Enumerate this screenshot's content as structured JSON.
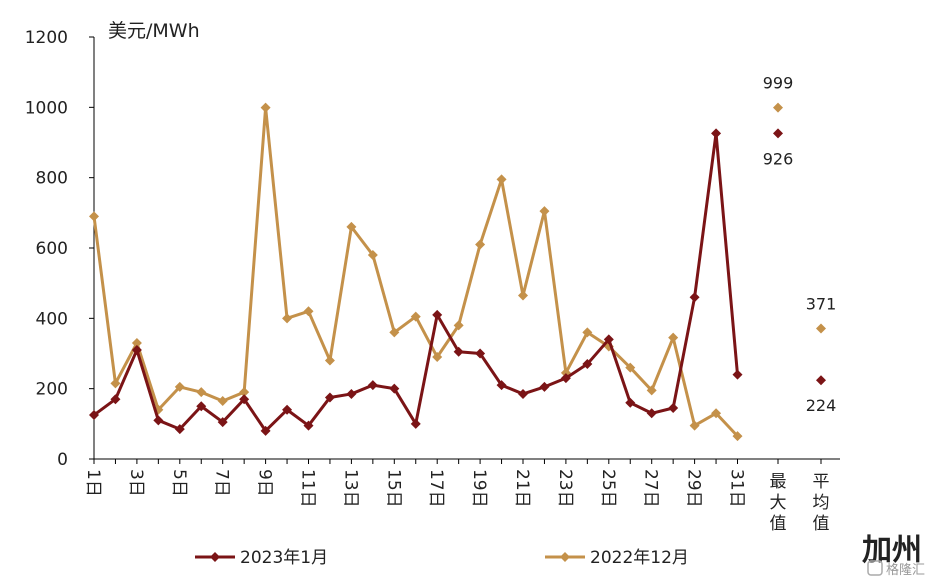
{
  "chart_data": {
    "type": "line",
    "ylabel": "美元/MWh",
    "region_label": "加州",
    "ylim": [
      0,
      1200
    ],
    "y_ticks": [
      "0",
      "200",
      "400",
      "600",
      "800",
      "1000",
      "1200"
    ],
    "x_tick_labels": [
      "1日",
      "3日",
      "5日",
      "7日",
      "9日",
      "11日",
      "13日",
      "15日",
      "17日",
      "19日",
      "21日",
      "23日",
      "25日",
      "27日",
      "29日",
      "31日",
      "最大值",
      "平均值"
    ],
    "days": [
      1,
      2,
      3,
      4,
      5,
      6,
      7,
      8,
      9,
      10,
      11,
      12,
      13,
      14,
      15,
      16,
      17,
      18,
      19,
      20,
      21,
      22,
      23,
      24,
      25,
      26,
      27,
      28,
      29,
      30,
      31
    ],
    "legend_position": "bottom",
    "grid": false,
    "series": [
      {
        "name": "2023年1月",
        "color": "#7B1416",
        "values": [
          125,
          170,
          310,
          110,
          85,
          150,
          105,
          170,
          80,
          140,
          95,
          175,
          185,
          210,
          200,
          100,
          410,
          305,
          300,
          210,
          185,
          205,
          230,
          270,
          340,
          160,
          130,
          145,
          460,
          926,
          240
        ],
        "max": 926,
        "avg": 224,
        "max_label": "926",
        "avg_label": "224"
      },
      {
        "name": "2022年12月",
        "color": "#C4914A",
        "values": [
          690,
          215,
          330,
          140,
          205,
          190,
          165,
          190,
          999,
          400,
          420,
          280,
          660,
          580,
          360,
          405,
          290,
          380,
          610,
          795,
          465,
          705,
          245,
          360,
          320,
          260,
          195,
          345,
          95,
          130,
          65
        ],
        "max": 999,
        "avg": 371,
        "max_label": "999",
        "avg_label": "371"
      }
    ]
  },
  "watermark": "格隆汇"
}
